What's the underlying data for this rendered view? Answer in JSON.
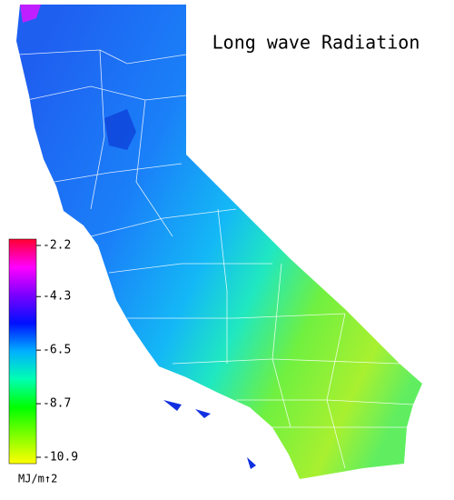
{
  "title": "Long wave Radiation",
  "colorbar": {
    "ticks": [
      -2.2,
      -4.3,
      -6.5,
      -8.7,
      -10.9
    ],
    "lim": [
      -2.2,
      -10.9
    ],
    "unit": "MJ/m↑2",
    "colors": [
      "#ff0030",
      "#ff00ff",
      "#7a00ff",
      "#0010ff",
      "#00b0ff",
      "#00ffb0",
      "#00ff00",
      "#80ff00",
      "#ffff00"
    ]
  }
}
